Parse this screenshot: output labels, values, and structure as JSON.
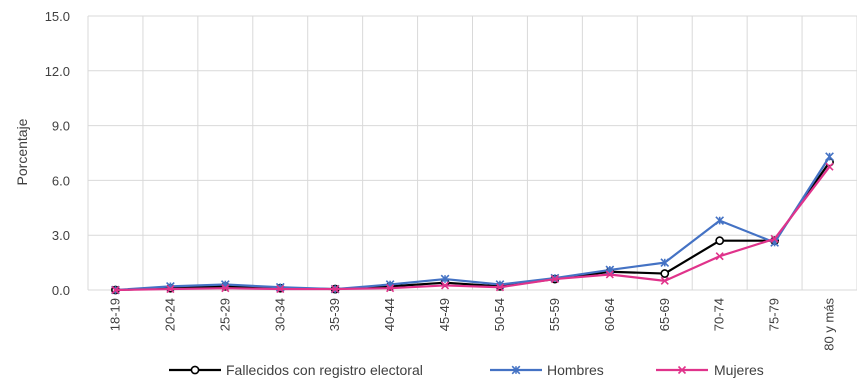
{
  "chart_data": {
    "type": "line",
    "title": "",
    "xlabel": "",
    "ylabel": "Porcentaje",
    "ylim": [
      0,
      15
    ],
    "yticks": [
      "0.0",
      "3.0",
      "6.0",
      "9.0",
      "12.0",
      "15.0"
    ],
    "categories": [
      "18-19",
      "20-24",
      "25-29",
      "30-34",
      "35-39",
      "40-44",
      "45-49",
      "50-54",
      "55-59",
      "60-64",
      "65-69",
      "70-74",
      "75-79",
      "80 y más"
    ],
    "grid": true,
    "legend_position": "bottom",
    "series": [
      {
        "name": "Fallecidos con registro electoral",
        "color": "#000000",
        "marker": "circle",
        "values": [
          0.0,
          0.1,
          0.2,
          0.1,
          0.05,
          0.2,
          0.4,
          0.2,
          0.6,
          1.0,
          0.9,
          2.7,
          2.7,
          7.0
        ]
      },
      {
        "name": "Hombres",
        "color": "#4472C4",
        "marker": "star",
        "values": [
          0.0,
          0.2,
          0.3,
          0.15,
          0.05,
          0.3,
          0.6,
          0.3,
          0.65,
          1.1,
          1.5,
          3.8,
          2.6,
          7.3
        ]
      },
      {
        "name": "Mujeres",
        "color": "#E0338B",
        "marker": "x",
        "values": [
          0.0,
          0.05,
          0.1,
          0.05,
          0.05,
          0.1,
          0.25,
          0.15,
          0.6,
          0.85,
          0.5,
          1.85,
          2.8,
          6.75
        ]
      }
    ]
  }
}
